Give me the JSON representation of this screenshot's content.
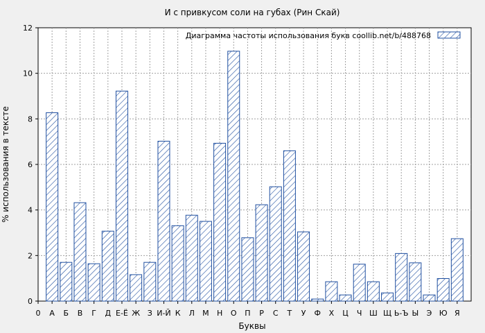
{
  "chart_data": {
    "type": "bar",
    "title": "И с привкусом соли на губах (Рин Скай)",
    "xlabel": "Буквы",
    "ylabel": "% использования в тексте",
    "legend_label": "Диаграмма частоты использования букв  coollib.net/b/488768",
    "legend_position": "top-right",
    "grid": true,
    "ylim": [
      0,
      12
    ],
    "yticks": [
      0,
      2,
      4,
      6,
      8,
      10,
      12
    ],
    "categories": [
      "0",
      "А",
      "Б",
      "В",
      "Г",
      "Д",
      "Е-Ё",
      "Ж",
      "З",
      "И-Й",
      "К",
      "Л",
      "М",
      "Н",
      "О",
      "П",
      "Р",
      "С",
      "Т",
      "У",
      "Ф",
      "Х",
      "Ц",
      "Ч",
      "Ш",
      "Щ",
      "Ь-Ъ",
      "Ы",
      "Э",
      "Ю",
      "Я"
    ],
    "values": [
      null,
      8.27,
      1.7,
      4.32,
      1.64,
      3.07,
      9.22,
      1.16,
      1.7,
      7.02,
      3.31,
      3.77,
      3.5,
      6.93,
      10.97,
      2.78,
      4.23,
      5.02,
      6.6,
      3.04,
      0.09,
      0.85,
      0.27,
      1.62,
      0.85,
      0.36,
      2.09,
      1.68,
      0.27,
      0.99,
      2.74
    ],
    "colors": {
      "bar_stroke": "#1f4fa0",
      "hatch": "#1f4fa0",
      "background": "#f0f0f0",
      "plot_background": "#ffffff",
      "grid": "#a0a0a0"
    }
  }
}
